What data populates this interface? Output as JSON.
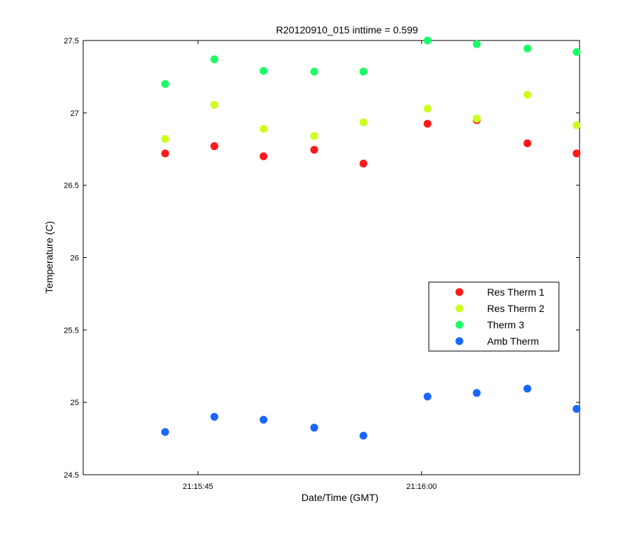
{
  "chart_data": {
    "type": "scatter",
    "title": "R20120910_015 inttime = 0.599",
    "xlabel": "Date/Time (GMT)",
    "ylabel": "Temperature (C)",
    "x_unit": "time (HH:MM:SS, GMT)",
    "xlim": [
      "21:15:37.3",
      "21:16:10.6"
    ],
    "ylim": [
      24.5,
      27.5
    ],
    "x_ticks": [
      "21:15:45",
      "21:16:00"
    ],
    "y_ticks": [
      "24.5",
      "25",
      "25.5",
      "26",
      "26.5",
      "27",
      "27.5"
    ],
    "x": [
      "21:15:42.8",
      "21:15:46.1",
      "21:15:49.4",
      "21:15:52.8",
      "21:15:56.1",
      "21:16:00.4",
      "21:16:03.7",
      "21:16:07.1",
      "21:16:10.4"
    ],
    "series": [
      {
        "name": "Res Therm 1",
        "color": "#ff1a1a",
        "values": [
          26.72,
          26.77,
          26.7,
          26.745,
          26.65,
          26.925,
          26.95,
          26.79,
          26.72
        ]
      },
      {
        "name": "Res Therm 2",
        "color": "#ccff1a",
        "values": [
          26.82,
          27.055,
          26.89,
          26.84,
          26.935,
          27.03,
          26.96,
          27.125,
          26.915
        ]
      },
      {
        "name": "Therm 3",
        "color": "#1aff66",
        "values": [
          27.2,
          27.37,
          27.29,
          27.285,
          27.285,
          27.5,
          27.475,
          27.445,
          27.42
        ]
      },
      {
        "name": "Amb Therm",
        "color": "#1a66ff",
        "values": [
          24.795,
          24.9,
          24.88,
          24.825,
          24.77,
          25.04,
          25.065,
          25.095,
          24.955
        ]
      }
    ],
    "grid": false,
    "legend_position": "center-right"
  }
}
